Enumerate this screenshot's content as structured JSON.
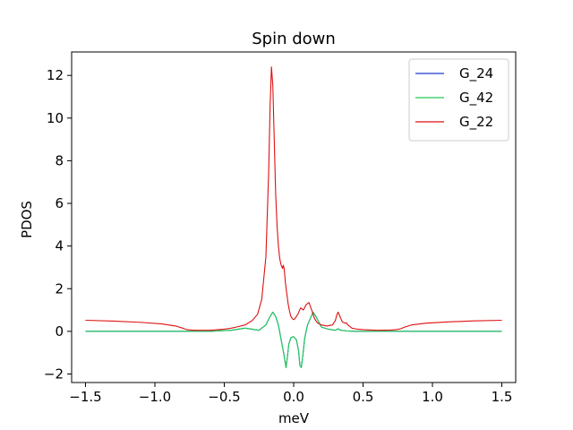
{
  "chart_data": {
    "type": "line",
    "title": "Spin down",
    "xlabel": "meV",
    "ylabel": "PDOS",
    "xlim": [
      -1.6,
      1.6
    ],
    "ylim": [
      -2.4,
      13.1
    ],
    "xticks": [
      -1.5,
      -1.0,
      -0.5,
      0.0,
      0.5,
      1.0,
      1.5
    ],
    "xtick_labels": [
      "−1.5",
      "−1.0",
      "−0.5",
      "0.0",
      "0.5",
      "1.0",
      "1.5"
    ],
    "yticks": [
      -2,
      0,
      2,
      4,
      6,
      8,
      10,
      12
    ],
    "ytick_labels": [
      "−2",
      "0",
      "2",
      "4",
      "6",
      "8",
      "10",
      "12"
    ],
    "grid": false,
    "legend_position": "top-right",
    "series": [
      {
        "name": "G_24",
        "color": "#1f3fcf",
        "x": [
          -1.5,
          -0.8,
          -0.6,
          -0.45,
          -0.35,
          -0.3,
          -0.25,
          -0.2,
          -0.17,
          -0.15,
          -0.13,
          -0.11,
          -0.09,
          -0.07,
          -0.055,
          -0.045,
          -0.035,
          -0.02,
          0.0,
          0.02,
          0.035,
          0.045,
          0.055,
          0.065,
          0.08,
          0.1,
          0.12,
          0.14,
          0.16,
          0.2,
          0.25,
          0.3,
          0.32,
          0.34,
          0.38,
          0.45,
          0.6,
          0.8,
          1.5
        ],
        "y": [
          0.0,
          0.0,
          0.0,
          0.05,
          0.15,
          0.1,
          0.05,
          0.3,
          0.7,
          0.9,
          0.7,
          0.3,
          -0.4,
          -1.1,
          -1.7,
          -1.2,
          -0.6,
          -0.3,
          -0.25,
          -0.4,
          -0.9,
          -1.6,
          -1.7,
          -1.2,
          -0.3,
          0.3,
          0.6,
          0.9,
          0.7,
          0.2,
          0.1,
          0.05,
          0.12,
          0.05,
          0.02,
          0.0,
          0.0,
          0.0,
          0.0
        ]
      },
      {
        "name": "G_42",
        "color": "#22cc55",
        "x": [
          -1.5,
          -0.8,
          -0.6,
          -0.45,
          -0.35,
          -0.3,
          -0.25,
          -0.2,
          -0.17,
          -0.15,
          -0.13,
          -0.11,
          -0.09,
          -0.07,
          -0.055,
          -0.045,
          -0.035,
          -0.02,
          0.0,
          0.02,
          0.035,
          0.045,
          0.055,
          0.065,
          0.08,
          0.1,
          0.12,
          0.14,
          0.16,
          0.2,
          0.25,
          0.3,
          0.32,
          0.34,
          0.38,
          0.45,
          0.6,
          0.8,
          1.5
        ],
        "y": [
          0.0,
          0.0,
          0.0,
          0.05,
          0.15,
          0.1,
          0.05,
          0.3,
          0.7,
          0.9,
          0.7,
          0.3,
          -0.4,
          -1.1,
          -1.7,
          -1.2,
          -0.6,
          -0.3,
          -0.25,
          -0.4,
          -0.9,
          -1.6,
          -1.7,
          -1.2,
          -0.3,
          0.3,
          0.6,
          0.9,
          0.7,
          0.2,
          0.1,
          0.05,
          0.12,
          0.05,
          0.02,
          0.0,
          0.0,
          0.0,
          0.0
        ]
      },
      {
        "name": "G_22",
        "color": "#dd1111",
        "x": [
          -1.5,
          -1.3,
          -1.1,
          -0.95,
          -0.85,
          -0.8,
          -0.77,
          -0.74,
          -0.7,
          -0.6,
          -0.5,
          -0.45,
          -0.4,
          -0.35,
          -0.3,
          -0.26,
          -0.23,
          -0.2,
          -0.18,
          -0.17,
          -0.16,
          -0.15,
          -0.14,
          -0.13,
          -0.12,
          -0.11,
          -0.1,
          -0.09,
          -0.08,
          -0.075,
          -0.07,
          -0.065,
          -0.06,
          -0.05,
          -0.04,
          -0.03,
          -0.02,
          -0.01,
          0.0,
          0.01,
          0.02,
          0.03,
          0.05,
          0.07,
          0.09,
          0.11,
          0.13,
          0.15,
          0.17,
          0.2,
          0.24,
          0.28,
          0.3,
          0.31,
          0.32,
          0.33,
          0.35,
          0.37,
          0.38,
          0.39,
          0.42,
          0.46,
          0.5,
          0.6,
          0.7,
          0.74,
          0.77,
          0.8,
          0.85,
          0.95,
          1.1,
          1.3,
          1.5
        ],
        "y": [
          0.52,
          0.48,
          0.42,
          0.35,
          0.25,
          0.15,
          0.08,
          0.06,
          0.05,
          0.05,
          0.1,
          0.15,
          0.22,
          0.3,
          0.5,
          0.8,
          1.5,
          3.5,
          7.5,
          10.5,
          12.4,
          11.5,
          9.0,
          6.5,
          5.0,
          4.0,
          3.4,
          3.1,
          2.95,
          3.1,
          3.0,
          2.7,
          2.3,
          1.8,
          1.3,
          0.95,
          0.7,
          0.6,
          0.55,
          0.6,
          0.7,
          0.8,
          1.1,
          1.0,
          1.25,
          1.35,
          1.0,
          0.6,
          0.4,
          0.3,
          0.25,
          0.3,
          0.5,
          0.75,
          0.9,
          0.75,
          0.45,
          0.38,
          0.4,
          0.3,
          0.15,
          0.1,
          0.08,
          0.05,
          0.06,
          0.08,
          0.12,
          0.2,
          0.3,
          0.38,
          0.44,
          0.49,
          0.52
        ]
      }
    ]
  }
}
